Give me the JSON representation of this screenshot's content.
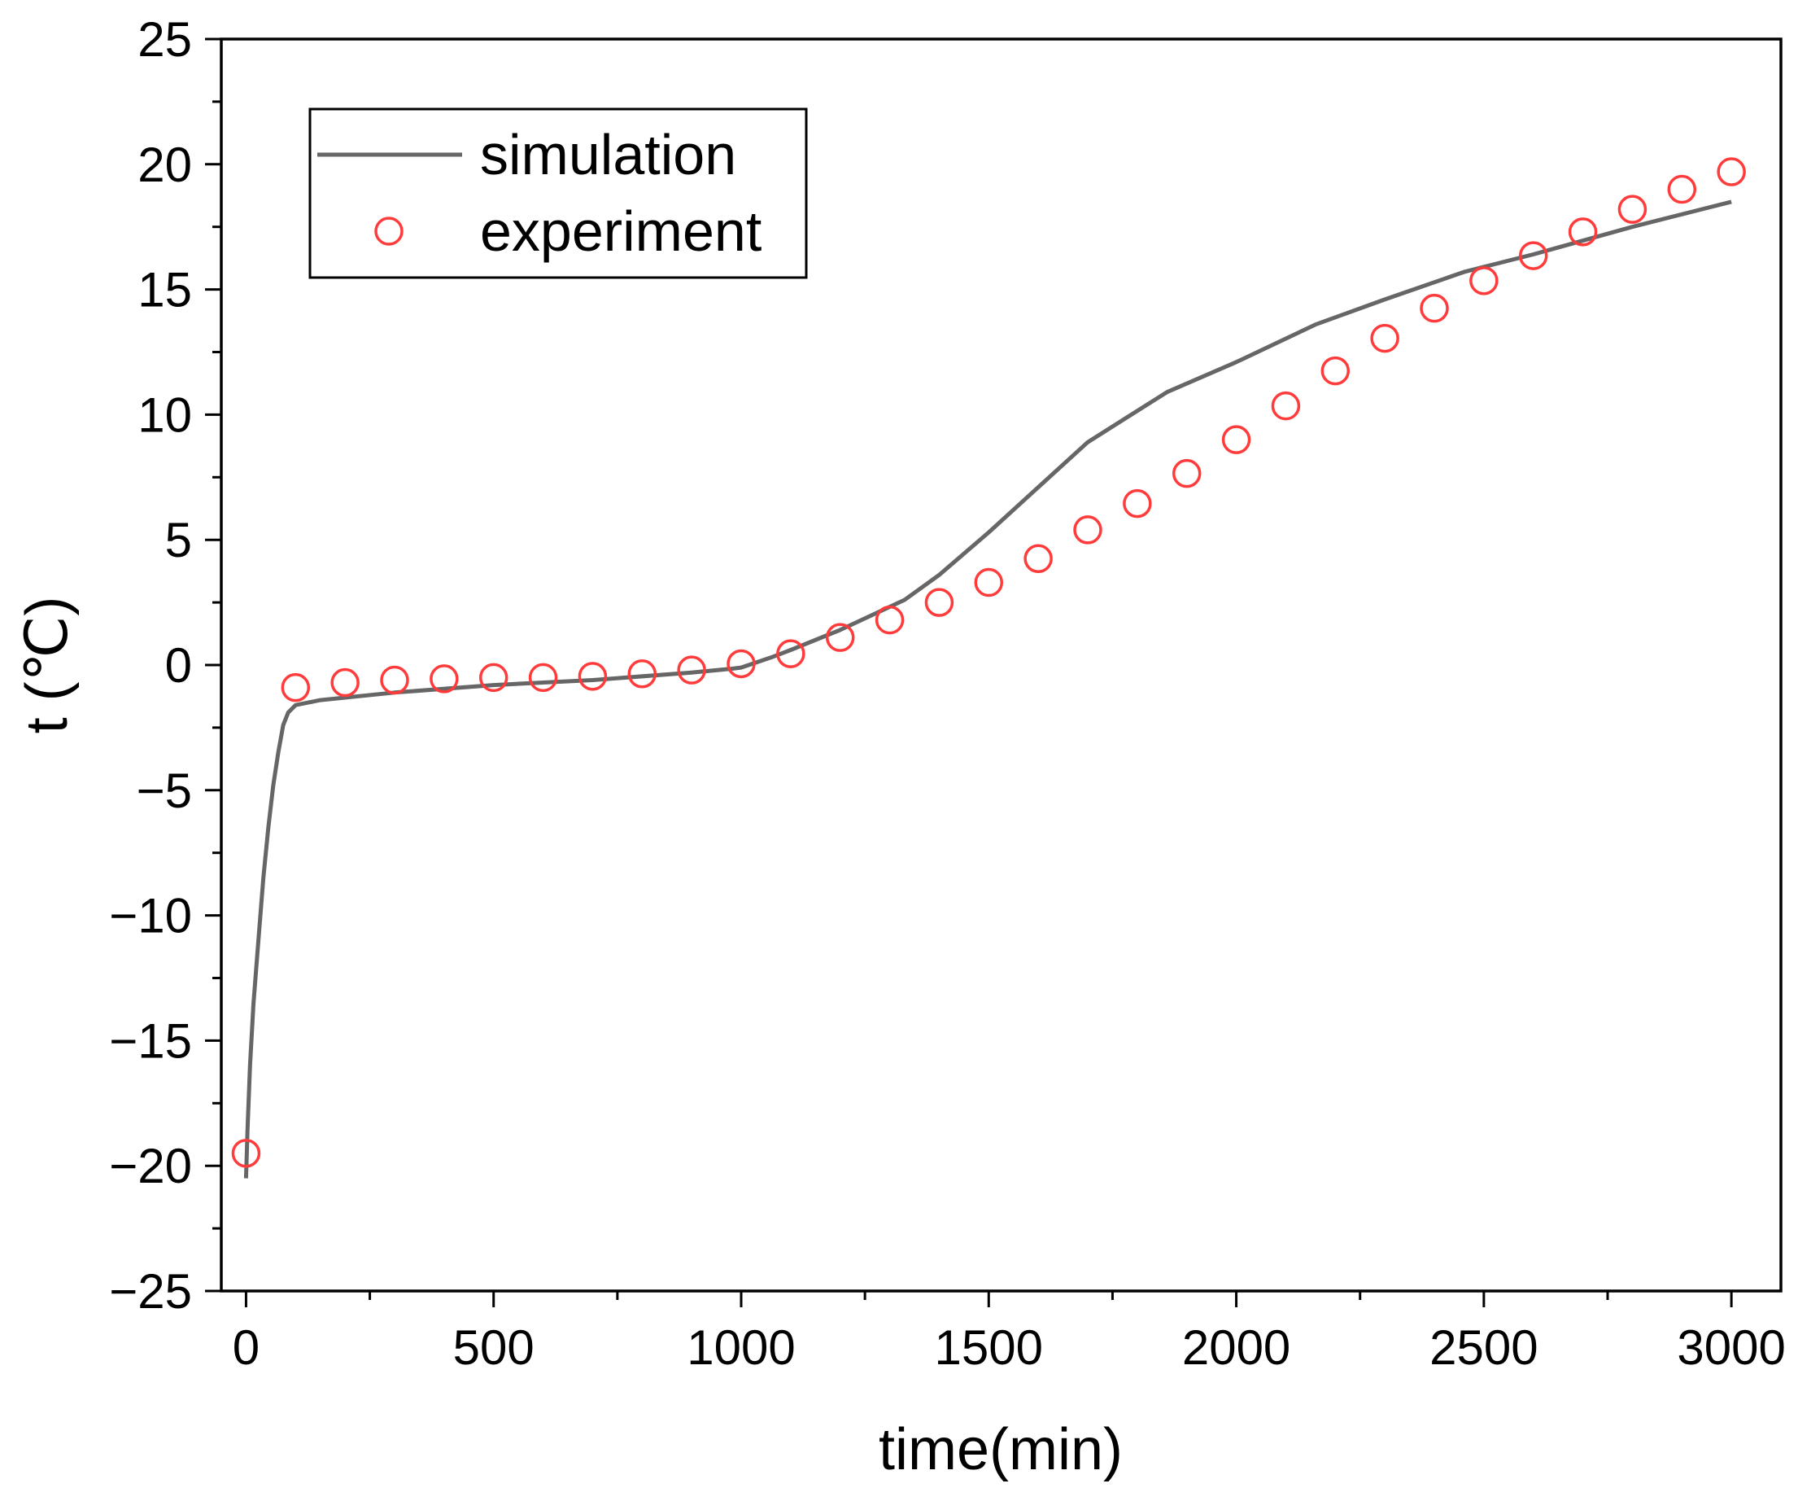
{
  "chart_data": {
    "type": "line",
    "title": "",
    "xlabel": "time(min)",
    "ylabel": "t (℃)",
    "xlim": [
      -50,
      3100
    ],
    "ylim": [
      -25,
      25
    ],
    "xticks": [
      0,
      500,
      1000,
      1500,
      2000,
      2500,
      3000
    ],
    "xtick_labels": [
      "0",
      "500",
      "1000",
      "1500",
      "2000",
      "2500",
      "3000"
    ],
    "yticks": [
      -25,
      -20,
      -15,
      -10,
      -5,
      0,
      5,
      10,
      15,
      20,
      25
    ],
    "ytick_labels": [
      "−25",
      "−20",
      "−15",
      "−10",
      "−5",
      "0",
      "5",
      "10",
      "15",
      "20",
      "25"
    ],
    "grid": false,
    "legend_position": "top-left",
    "series": [
      {
        "name": "simulation",
        "style": "line",
        "color": "#666666",
        "x": [
          0,
          3,
          8,
          15,
          25,
          35,
          45,
          55,
          65,
          75,
          85,
          100,
          150,
          300,
          500,
          700,
          900,
          980,
          1000,
          1060,
          1100,
          1200,
          1330,
          1400,
          1500,
          1600,
          1700,
          1860,
          2000,
          2160,
          2300,
          2460,
          2600,
          2800,
          3000
        ],
        "y": [
          -20.5,
          -18.5,
          -16,
          -13.5,
          -11,
          -8.5,
          -6.5,
          -4.8,
          -3.5,
          -2.4,
          -1.9,
          -1.6,
          -1.4,
          -1.1,
          -0.8,
          -0.6,
          -0.3,
          -0.15,
          -0.1,
          0.3,
          0.6,
          1.4,
          2.6,
          3.6,
          5.3,
          7.1,
          8.9,
          10.9,
          12.1,
          13.6,
          14.6,
          15.7,
          16.4,
          17.5,
          18.5
        ]
      },
      {
        "name": "experiment",
        "style": "markers",
        "color": "#ff3b3b",
        "x": [
          0,
          100,
          200,
          300,
          400,
          500,
          600,
          700,
          800,
          900,
          1000,
          1100,
          1200,
          1300,
          1400,
          1500,
          1600,
          1700,
          1800,
          1900,
          2000,
          2100,
          2200,
          2300,
          2400,
          2500,
          2600,
          2700,
          2800,
          2900,
          3000
        ],
        "y": [
          -19.5,
          -0.9,
          -0.7,
          -0.6,
          -0.55,
          -0.5,
          -0.5,
          -0.45,
          -0.35,
          -0.2,
          0.05,
          0.45,
          1.1,
          1.8,
          2.5,
          3.3,
          4.25,
          5.4,
          6.45,
          7.65,
          9.0,
          10.35,
          11.75,
          13.05,
          14.25,
          15.35,
          16.35,
          17.3,
          18.2,
          19.0,
          19.7
        ]
      }
    ]
  }
}
